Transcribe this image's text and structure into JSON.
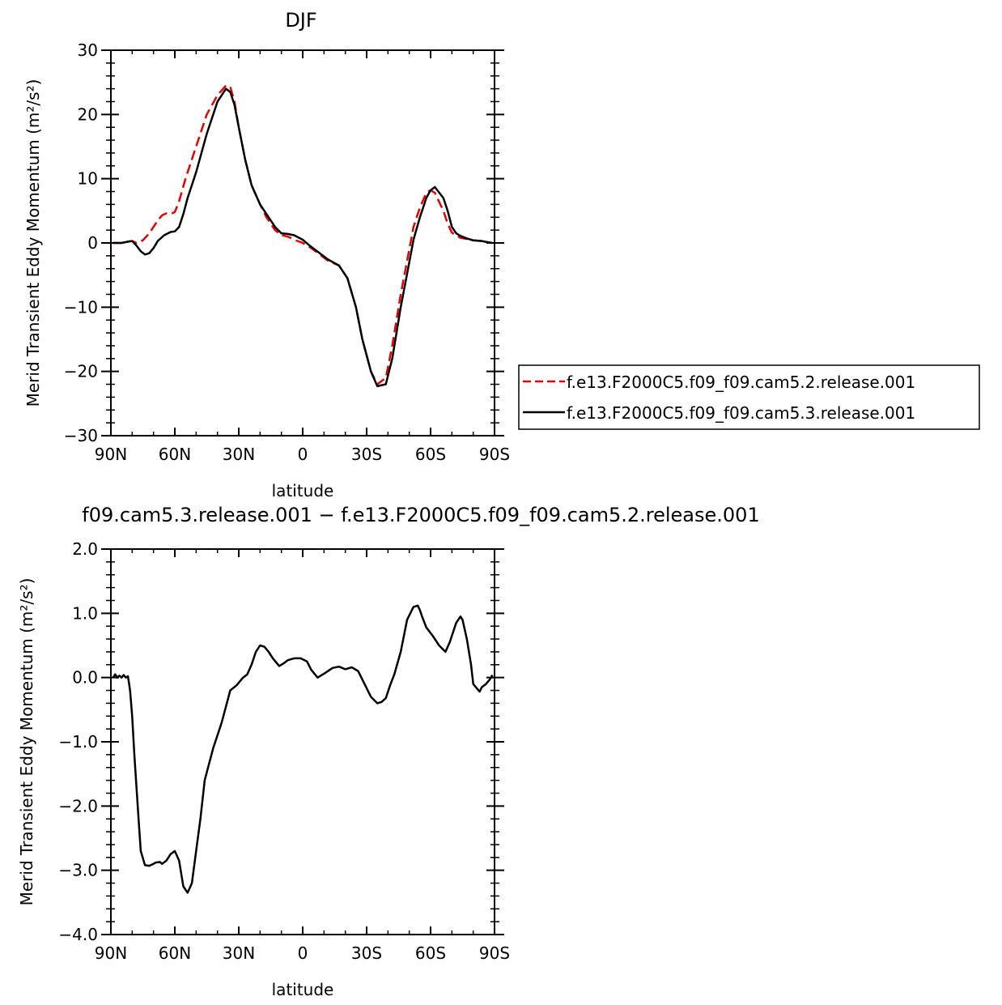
{
  "chart_data": [
    {
      "type": "line",
      "title": "DJF",
      "xlabel": "latitude",
      "ylabel": "Merid Transient Eddy Momentum (m²/s²)",
      "xlim": [
        90,
        -90
      ],
      "ylim": [
        -30,
        30
      ],
      "x_ticks": [
        90,
        60,
        30,
        0,
        -30,
        -60,
        -90
      ],
      "x_tick_labels": [
        "90N",
        "60N",
        "30N",
        "0",
        "30S",
        "60S",
        "90S"
      ],
      "y_ticks": [
        30,
        20,
        10,
        0,
        -10,
        -20,
        -30
      ],
      "y_tick_labels": [
        "30",
        "20",
        "10",
        "0",
        "−10",
        "−20",
        "−30"
      ],
      "legend_position": "right",
      "series": [
        {
          "name": "f.e13.F2000C5.f09_f09.cam5.2.release.001",
          "color": "#e00000",
          "style": "dashed",
          "x": [
            89,
            85,
            82,
            80,
            78,
            75,
            72,
            70,
            68,
            66,
            64,
            62,
            60,
            58,
            55,
            50,
            45,
            40,
            36,
            34,
            32,
            30,
            27,
            24,
            20,
            17,
            15,
            13,
            10,
            7,
            4,
            0,
            -4,
            -8,
            -12,
            -17,
            -21,
            -25,
            -28,
            -32,
            -35,
            -39,
            -42,
            -44,
            -46,
            -50,
            -52,
            -55,
            -58,
            -60,
            -62,
            -66,
            -68,
            -70,
            -72,
            -74,
            -77,
            -80,
            -84,
            -87,
            -89
          ],
          "y": [
            0,
            0,
            0.2,
            0.3,
            0.0,
            0.4,
            1.5,
            2.5,
            3.5,
            4.3,
            4.6,
            4.5,
            4.8,
            6.5,
            10,
            15,
            20,
            23,
            24.5,
            24.3,
            22,
            18,
            13,
            9,
            6,
            4,
            3,
            2,
            1.2,
            1,
            0.5,
            0,
            -0.8,
            -1.8,
            -2.8,
            -3.5,
            -5.5,
            -10,
            -15,
            -20,
            -22,
            -21,
            -16,
            -12,
            -8,
            -1,
            2.5,
            5.5,
            7.8,
            8.2,
            7.8,
            5,
            3,
            1.6,
            1.2,
            0.8,
            0.6,
            0.4,
            0.3,
            0.1,
            0
          ]
        },
        {
          "name": "f.e13.F2000C5.f09_f09.cam5.3.release.001",
          "color": "#000000",
          "style": "solid",
          "x": [
            89,
            87,
            85,
            82,
            80,
            78,
            76,
            74,
            72,
            70,
            68,
            65,
            62,
            60,
            58,
            56,
            54,
            50,
            45,
            40,
            36,
            34,
            32,
            30,
            27,
            24,
            20,
            17,
            15,
            13,
            10,
            7,
            4,
            0,
            -4,
            -8,
            -12,
            -17,
            -21,
            -25,
            -28,
            -32,
            -35,
            -39,
            -42,
            -44,
            -46,
            -50,
            -52,
            -55,
            -58,
            -60,
            -62,
            -66,
            -68,
            -70,
            -72,
            -74,
            -77,
            -80,
            -84,
            -87,
            -89
          ],
          "y": [
            0,
            0,
            0,
            0.2,
            0.3,
            -0.4,
            -1.3,
            -1.8,
            -1.6,
            -0.8,
            0.3,
            1.2,
            1.7,
            1.8,
            2.5,
            4.5,
            7,
            11,
            17,
            22,
            24,
            23.5,
            21.5,
            18,
            13,
            9,
            6,
            4.5,
            3.5,
            2.5,
            1.5,
            1.4,
            1.2,
            0.5,
            -0.6,
            -1.6,
            -2.6,
            -3.5,
            -5.5,
            -10,
            -15,
            -20,
            -22.3,
            -22,
            -18,
            -14,
            -10,
            -3,
            0.5,
            4,
            7,
            8.2,
            8.7,
            7,
            5,
            2.5,
            1.5,
            1.1,
            0.7,
            0.4,
            0.3,
            0.1,
            0
          ]
        }
      ]
    },
    {
      "type": "line",
      "title": "f09.cam5.3.release.001  −  f.e13.F2000C5.f09_f09.cam5.2.release.001",
      "xlabel": "latitude",
      "ylabel": "Merid Transient Eddy Momentum (m²/s²)",
      "xlim": [
        90,
        -90
      ],
      "ylim": [
        -4,
        2
      ],
      "x_ticks": [
        90,
        60,
        30,
        0,
        -30,
        -60,
        -90
      ],
      "x_tick_labels": [
        "90N",
        "60N",
        "30N",
        "0",
        "30S",
        "60S",
        "90S"
      ],
      "y_ticks": [
        2,
        1,
        0,
        -1,
        -2,
        -3,
        -4
      ],
      "y_tick_labels": [
        "2.0",
        "1.0",
        "0.0",
        "−1.0",
        "−2.0",
        "−3.0",
        "−4.0"
      ],
      "series": [
        {
          "color": "#000000",
          "style": "solid",
          "x": [
            89,
            88,
            87,
            86,
            85,
            84,
            83,
            82,
            81,
            80,
            79,
            78,
            77,
            76,
            74,
            72,
            70,
            69,
            67,
            66,
            64,
            62,
            60,
            58,
            56,
            54,
            52,
            50,
            48,
            46,
            44,
            42,
            38,
            34,
            31,
            30,
            28,
            26,
            24,
            22,
            20,
            18,
            16,
            14,
            11,
            9,
            7,
            4,
            1,
            -2,
            -4,
            -7,
            -10,
            -14,
            -17,
            -20,
            -23,
            -26,
            -29,
            -32,
            -35,
            -37,
            -39,
            -41,
            -43,
            -46,
            -49,
            -52,
            -54,
            -55,
            -56,
            -58,
            -61,
            -64,
            -67,
            -69,
            -72,
            -74,
            -75,
            -77,
            -79,
            -80,
            -82,
            -83,
            -84,
            -86,
            -88,
            -89
          ],
          "y": [
            0,
            0.05,
            0,
            0.03,
            0,
            0.04,
            0,
            0.02,
            -0.2,
            -0.6,
            -1.2,
            -1.7,
            -2.2,
            -2.7,
            -2.92,
            -2.93,
            -2.9,
            -2.88,
            -2.87,
            -2.9,
            -2.85,
            -2.75,
            -2.7,
            -2.85,
            -3.25,
            -3.35,
            -3.2,
            -2.7,
            -2.2,
            -1.6,
            -1.35,
            -1.1,
            -0.7,
            -0.2,
            -0.12,
            -0.08,
            0,
            0.05,
            0.2,
            0.4,
            0.5,
            0.48,
            0.4,
            0.3,
            0.18,
            0.22,
            0.27,
            0.3,
            0.3,
            0.25,
            0.12,
            0,
            0.06,
            0.15,
            0.17,
            0.13,
            0.16,
            0.1,
            -0.1,
            -0.3,
            -0.4,
            -0.38,
            -0.32,
            -0.12,
            0.05,
            0.4,
            0.9,
            1.1,
            1.12,
            1.05,
            0.95,
            0.78,
            0.65,
            0.5,
            0.4,
            0.55,
            0.85,
            0.95,
            0.9,
            0.6,
            0.2,
            -0.1,
            -0.18,
            -0.22,
            -0.15,
            -0.1,
            -0.02,
            0.04
          ]
        }
      ]
    }
  ]
}
